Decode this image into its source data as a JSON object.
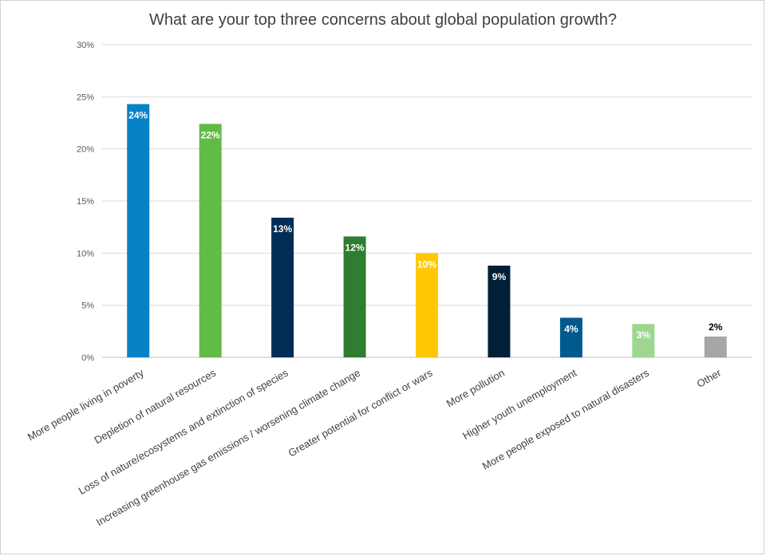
{
  "chart_data": {
    "type": "bar",
    "title": "What are your top three concerns about global population growth?",
    "xlabel": "",
    "ylabel": "",
    "ylim": [
      0,
      30
    ],
    "yticks": [
      "0%",
      "5%",
      "10%",
      "15%",
      "20%",
      "25%",
      "30%"
    ],
    "ytick_values": [
      0,
      5,
      10,
      15,
      20,
      25,
      30
    ],
    "grid": true,
    "legend": "none",
    "categories": [
      "More people living in poverty",
      "Depletion of natural resources",
      "Loss of nature/ecosystems and extinction of species",
      "Increasing greenhouse gas emissions / worsening climate change",
      "Greater potential for conflict or wars",
      "More pollution",
      "Higher youth unemployment",
      "More people exposed to natural disasters",
      "Other"
    ],
    "values": [
      24.3,
      22.4,
      13.4,
      11.6,
      10.0,
      8.8,
      3.8,
      3.2,
      2.0
    ],
    "data_labels": [
      "24%",
      "22%",
      "13%",
      "12%",
      "10%",
      "9%",
      "4%",
      "3%",
      "2%"
    ],
    "colors": [
      "#0683c6",
      "#62bb46",
      "#002d56",
      "#2e7d32",
      "#ffc800",
      "#002038",
      "#005a8c",
      "#9ed68f",
      "#a6a6a6"
    ],
    "label_colors": [
      "#ffffff",
      "#ffffff",
      "#ffffff",
      "#ffffff",
      "#ffffff",
      "#ffffff",
      "#ffffff",
      "#ffffff",
      "#000000"
    ],
    "label_inside": [
      true,
      true,
      true,
      true,
      true,
      true,
      true,
      true,
      false
    ]
  }
}
